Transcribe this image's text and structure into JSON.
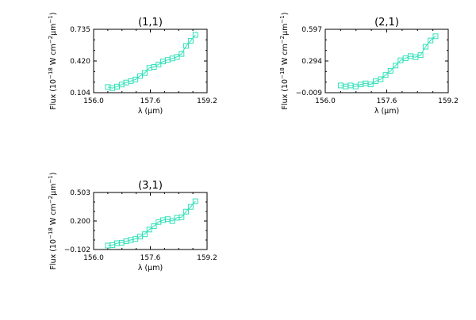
{
  "series_color": "#2fe0b8",
  "chart_data": [
    {
      "type": "line",
      "title": "(1,1)",
      "xlabel": "λ (μm)",
      "ylabel_main": "Flux (10",
      "ylabel_exp1": "−18",
      "ylabel_mid": " W cm",
      "ylabel_exp2": "−2",
      "ylabel_mu": "μm",
      "ylabel_exp3": "−1",
      "ylabel_end": ")",
      "xlim": [
        156.0,
        159.2
      ],
      "ylim": [
        0.104,
        0.735
      ],
      "xticks": [
        "156.0",
        "157.6",
        "159.2"
      ],
      "yticks": [
        "0.104",
        "0.420",
        "0.735"
      ],
      "x": [
        156.4,
        156.53,
        156.66,
        156.79,
        156.92,
        157.05,
        157.18,
        157.31,
        157.44,
        157.57,
        157.7,
        157.83,
        157.96,
        158.09,
        158.22,
        158.35,
        158.48,
        158.61,
        158.74,
        158.87
      ],
      "y": [
        0.16,
        0.15,
        0.165,
        0.185,
        0.205,
        0.22,
        0.235,
        0.27,
        0.3,
        0.35,
        0.36,
        0.385,
        0.415,
        0.43,
        0.445,
        0.46,
        0.49,
        0.57,
        0.62,
        0.68
      ]
    },
    {
      "type": "line",
      "title": "(2,1)",
      "xlabel": "λ (μm)",
      "ylabel_main": "Flux (10",
      "ylabel_exp1": "−18",
      "ylabel_mid": " W cm",
      "ylabel_exp2": "−2",
      "ylabel_mu": "μm",
      "ylabel_exp3": "−1",
      "ylabel_end": ")",
      "xlim": [
        156.0,
        159.2
      ],
      "ylim": [
        -0.009,
        0.597
      ],
      "xticks": [
        "156.0",
        "157.6",
        "159.2"
      ],
      "yticks": [
        "−0.009",
        "0.294",
        "0.597"
      ],
      "x": [
        156.4,
        156.53,
        156.66,
        156.79,
        156.92,
        157.05,
        157.18,
        157.31,
        157.44,
        157.57,
        157.7,
        157.83,
        157.96,
        158.09,
        158.22,
        158.35,
        158.48,
        158.61,
        158.74,
        158.87
      ],
      "y": [
        0.06,
        0.05,
        0.06,
        0.05,
        0.07,
        0.08,
        0.07,
        0.1,
        0.12,
        0.16,
        0.2,
        0.25,
        0.3,
        0.32,
        0.34,
        0.33,
        0.35,
        0.43,
        0.49,
        0.53
      ]
    },
    {
      "type": "line",
      "title": "(3,1)",
      "xlabel": "λ (μm)",
      "ylabel_main": "Flux (10",
      "ylabel_exp1": "−18",
      "ylabel_mid": " W cm",
      "ylabel_exp2": "−2",
      "ylabel_mu": "μm",
      "ylabel_exp3": "−1",
      "ylabel_end": ")",
      "xlim": [
        156.0,
        159.2
      ],
      "ylim": [
        -0.102,
        0.503
      ],
      "xticks": [
        "156.0",
        "157.6",
        "159.2"
      ],
      "yticks": [
        "−0.102",
        "0.200",
        "0.503"
      ],
      "x": [
        156.4,
        156.53,
        156.66,
        156.79,
        156.92,
        157.05,
        157.18,
        157.31,
        157.44,
        157.57,
        157.7,
        157.83,
        157.96,
        158.09,
        158.22,
        158.35,
        158.48,
        158.61,
        158.74,
        158.87
      ],
      "y": [
        -0.06,
        -0.055,
        -0.035,
        -0.03,
        -0.015,
        0.0,
        0.01,
        0.035,
        0.06,
        0.11,
        0.145,
        0.19,
        0.21,
        0.22,
        0.2,
        0.235,
        0.24,
        0.3,
        0.35,
        0.41
      ]
    }
  ]
}
